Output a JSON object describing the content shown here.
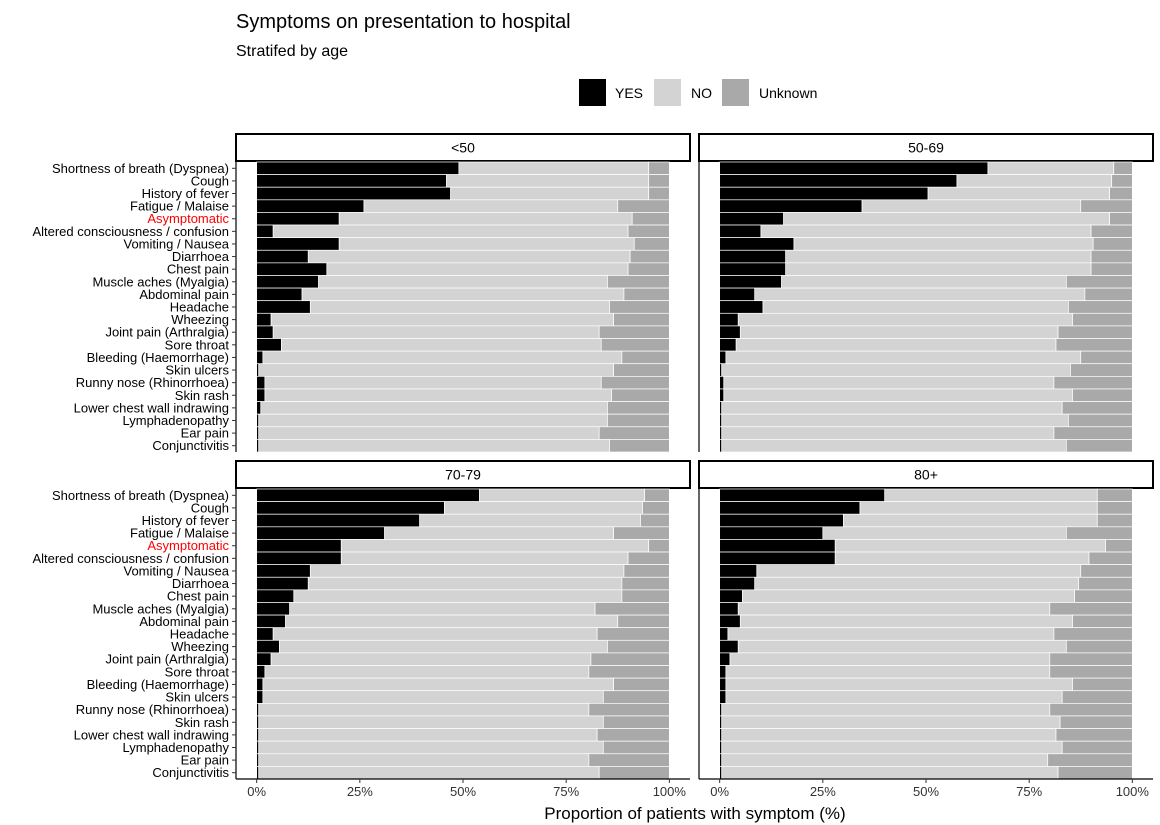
{
  "chart_data": {
    "type": "bar",
    "orientation": "horizontal",
    "stacked": true,
    "title": "Symptoms on presentation to hospital",
    "subtitle": "Stratifed by age",
    "xlabel": "Proportion of patients with symptom (%)",
    "ylabel": "",
    "xlim": [
      0,
      100
    ],
    "x_ticks": [
      "0%",
      "25%",
      "50%",
      "75%",
      "100%"
    ],
    "legend": {
      "position": "top",
      "entries": [
        {
          "name": "YES",
          "color": "#000000"
        },
        {
          "name": "NO",
          "color": "#d3d3d3"
        },
        {
          "name": "Unknown",
          "color": "#a9a9a9"
        }
      ]
    },
    "highlight": {
      "category": "Asymptomatic",
      "color": "#ff0000"
    },
    "categories": [
      "Shortness of breath (Dyspnea)",
      "Cough",
      "History of fever",
      "Fatigue / Malaise",
      "Asymptomatic",
      "Altered consciousness / confusion",
      "Vomiting / Nausea",
      "Diarrhoea",
      "Chest pain",
      "Muscle aches (Myalgia)",
      "Abdominal pain",
      "Headache",
      "Wheezing",
      "Joint pain (Arthralgia)",
      "Sore throat",
      "Bleeding (Haemorrhage)",
      "Skin ulcers",
      "Runny nose (Rhinorrhoea)",
      "Skin rash",
      "Lower chest wall indrawing",
      "Lymphadenopathy",
      "Ear pain",
      "Conjunctivitis"
    ],
    "panels": [
      {
        "label": "<50",
        "yes": [
          49,
          46,
          47,
          26,
          20,
          4,
          20,
          12.5,
          17,
          15,
          11,
          13,
          3.5,
          4,
          6,
          1.5,
          0.5,
          2,
          2,
          1,
          0.5,
          0.5,
          0.5
        ],
        "no": [
          46,
          49,
          48,
          61.5,
          71,
          86,
          71.5,
          78,
          73,
          70,
          78,
          72.5,
          83,
          79,
          77.5,
          87,
          86,
          81.5,
          84,
          84,
          84.5,
          82.5,
          85
        ],
        "unknown": [
          5,
          5,
          5,
          12.5,
          9,
          10,
          8.5,
          9.5,
          10,
          15,
          11,
          14.5,
          13.5,
          17,
          16.5,
          11.5,
          13.5,
          16.5,
          14,
          15,
          15,
          17,
          14.5
        ]
      },
      {
        "label": "50-69",
        "yes": [
          65,
          57.5,
          50.5,
          34.5,
          15.5,
          10,
          18,
          16,
          16,
          15,
          8.5,
          10.5,
          4.5,
          5,
          4,
          1.5,
          0.5,
          1,
          1,
          0.5,
          0.5,
          0.5,
          0.5
        ],
        "no": [
          30.5,
          37.5,
          44,
          53,
          79,
          80,
          72.5,
          74,
          74,
          69,
          80,
          74,
          81,
          77,
          77.5,
          86,
          84.5,
          80,
          84.5,
          82.5,
          84,
          80.5,
          83.5
        ],
        "unknown": [
          4.5,
          5,
          5.5,
          12.5,
          5.5,
          10,
          9.5,
          10,
          10,
          16,
          11.5,
          15.5,
          14.5,
          18,
          18.5,
          12.5,
          15,
          19,
          14.5,
          17,
          15.5,
          19,
          16
        ]
      },
      {
        "label": "70-79",
        "yes": [
          54,
          45.5,
          39.5,
          31,
          20.5,
          20.5,
          13,
          12.5,
          9,
          8,
          7,
          4,
          5.5,
          3.5,
          2,
          1.5,
          1.5,
          0.5,
          0.5,
          0.5,
          0.5,
          0.5,
          0.5
        ],
        "no": [
          40,
          48,
          53.5,
          55.5,
          74.5,
          69.5,
          76,
          76,
          79.5,
          74,
          80.5,
          78.5,
          79.5,
          77.5,
          78.5,
          85,
          82.5,
          80,
          83.5,
          82,
          83.5,
          80,
          82.5
        ],
        "unknown": [
          6,
          6.5,
          7,
          13.5,
          5,
          10,
          11,
          11.5,
          11.5,
          18,
          12.5,
          17.5,
          15,
          19,
          19.5,
          13.5,
          16,
          19.5,
          16,
          17.5,
          16,
          19.5,
          17
        ]
      },
      {
        "label": "80+",
        "yes": [
          40,
          34,
          30,
          25,
          28,
          28,
          9,
          8.5,
          5.5,
          4.5,
          5,
          2,
          4.5,
          2.5,
          1.5,
          1.5,
          1.5,
          0.5,
          0.5,
          0.5,
          0.5,
          0.5,
          0.5
        ],
        "no": [
          51.5,
          57.5,
          61.5,
          59,
          65.5,
          61.5,
          78.5,
          78.5,
          80.5,
          75.5,
          80.5,
          79,
          79.5,
          77.5,
          78.5,
          84,
          81.5,
          79.5,
          82,
          81,
          82.5,
          79,
          81.5
        ],
        "unknown": [
          8.5,
          8.5,
          8.5,
          16,
          6.5,
          10.5,
          12.5,
          13,
          14,
          20,
          14.5,
          19,
          16,
          20,
          20,
          14.5,
          17,
          20,
          17.5,
          18.5,
          17,
          20.5,
          18
        ]
      }
    ]
  }
}
